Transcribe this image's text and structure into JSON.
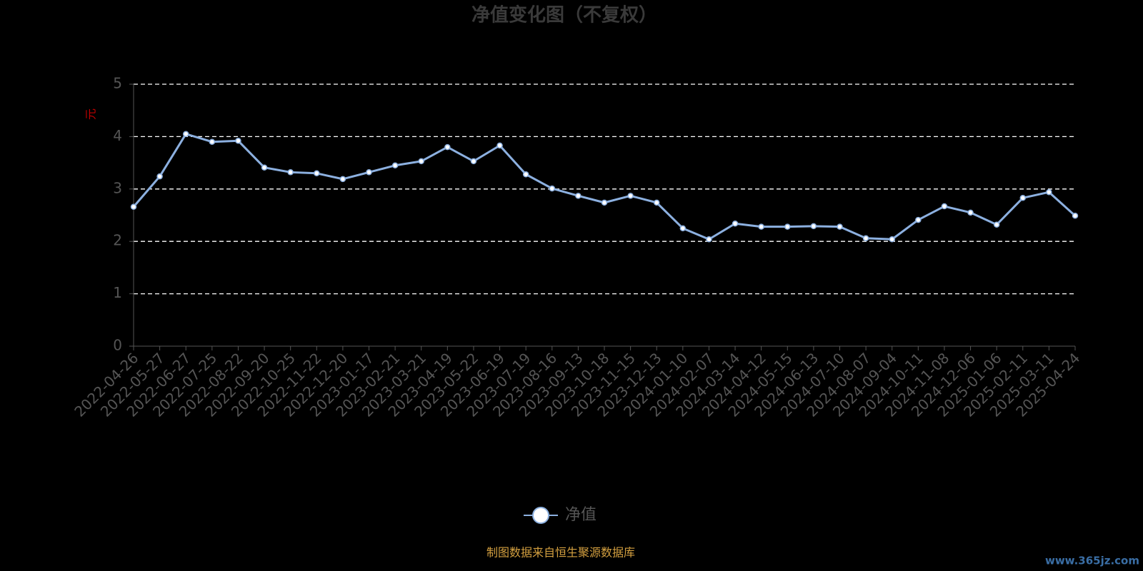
{
  "chart_data": {
    "type": "line",
    "title": "净值变化图（不复权）",
    "y_label": "元",
    "categories": [
      "2022-04-26",
      "2022-05-27",
      "2022-06-27",
      "2022-07-25",
      "2022-08-22",
      "2022-09-20",
      "2022-10-25",
      "2022-11-22",
      "2022-12-20",
      "2023-01-17",
      "2023-02-21",
      "2023-03-21",
      "2023-04-19",
      "2023-05-22",
      "2023-06-19",
      "2023-07-19",
      "2023-08-16",
      "2023-09-13",
      "2023-10-18",
      "2023-11-15",
      "2023-12-13",
      "2024-01-10",
      "2024-02-07",
      "2024-03-14",
      "2024-04-12",
      "2024-05-15",
      "2024-06-13",
      "2024-07-10",
      "2024-08-07",
      "2024-09-04",
      "2024-10-11",
      "2024-11-08",
      "2024-12-06",
      "2025-01-06",
      "2025-02-11",
      "2025-03-11",
      "2025-04-24"
    ],
    "series": [
      {
        "name": "净值",
        "color": "#8cb0e0",
        "values": [
          2.66,
          3.24,
          4.05,
          3.9,
          3.92,
          3.41,
          3.32,
          3.3,
          3.19,
          3.32,
          3.45,
          3.53,
          3.8,
          3.53,
          3.83,
          3.28,
          3.01,
          2.87,
          2.74,
          2.87,
          2.74,
          2.25,
          2.04,
          2.34,
          2.28,
          2.28,
          2.29,
          2.28,
          2.06,
          2.04,
          2.41,
          2.67,
          2.55,
          2.32,
          2.83,
          2.94,
          2.49
        ]
      }
    ],
    "ylim": [
      0,
      5
    ],
    "yticks": [
      0,
      1,
      2,
      3,
      4,
      5
    ],
    "grid": true,
    "source_note": "制图数据来自恒生聚源数据库",
    "watermark": "www.365jz.com"
  }
}
